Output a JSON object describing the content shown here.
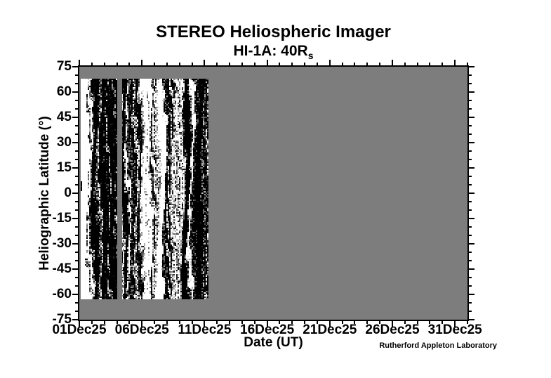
{
  "header": {
    "title": "STEREO Heliospheric Imager",
    "subtitle_base": "HI-1A: 40R",
    "subtitle_subscript": "s"
  },
  "footer": {
    "credit": "Rutherford Appleton Laboratory"
  },
  "colors": {
    "page_background": "#ffffff",
    "plot_background": "#7d7d7d",
    "data_gap_gray": "#767676",
    "axis": "#000000"
  },
  "chart_data": {
    "type": "heatmap",
    "title": "STEREO Heliospheric Imager",
    "subtitle": "HI-1A: 40Rs",
    "xlabel": "Date (UT)",
    "ylabel": "Heliographic Latitude (°)",
    "x_axis": {
      "unit": "date",
      "range_days": [
        0,
        31
      ],
      "start_date": "01Dec25",
      "minor_tick_step_days": 1,
      "ticks": [
        {
          "day": 0,
          "label": "01Dec25"
        },
        {
          "day": 5,
          "label": "06Dec25"
        },
        {
          "day": 10,
          "label": "11Dec25"
        },
        {
          "day": 15,
          "label": "16Dec25"
        },
        {
          "day": 20,
          "label": "21Dec25"
        },
        {
          "day": 25,
          "label": "26Dec25"
        },
        {
          "day": 30,
          "label": "31Dec25"
        }
      ]
    },
    "y_axis": {
      "range": [
        -75,
        75
      ],
      "major_tick_step_deg": 15,
      "minor_tick_step_deg": 5,
      "ticks": [
        {
          "lat": 75,
          "label": "75"
        },
        {
          "lat": 60,
          "label": "60"
        },
        {
          "lat": 45,
          "label": "45"
        },
        {
          "lat": 30,
          "label": "30"
        },
        {
          "lat": 15,
          "label": "15"
        },
        {
          "lat": 0,
          "label": "0"
        },
        {
          "lat": -15,
          "label": "-15"
        },
        {
          "lat": -30,
          "label": "-30"
        },
        {
          "lat": -45,
          "label": "-45"
        },
        {
          "lat": -60,
          "label": "-60"
        },
        {
          "lat": -75,
          "label": "-75"
        }
      ]
    },
    "image": {
      "description": "Latitude-time running-difference J-map: vertical black/white streak texture where data exists (01Dec25 to ~11Dec25, latitude ~-63 to ~+68), uniform gray where no data",
      "coverage": {
        "day_start": 0.1,
        "day_end": 10.3,
        "lat_min": -63,
        "lat_max": 68
      },
      "data_gap": {
        "day_start": 3.0,
        "day_end": 3.4
      },
      "no_data_gray": "#7d7d7d",
      "gap_gray": "#767676"
    }
  }
}
